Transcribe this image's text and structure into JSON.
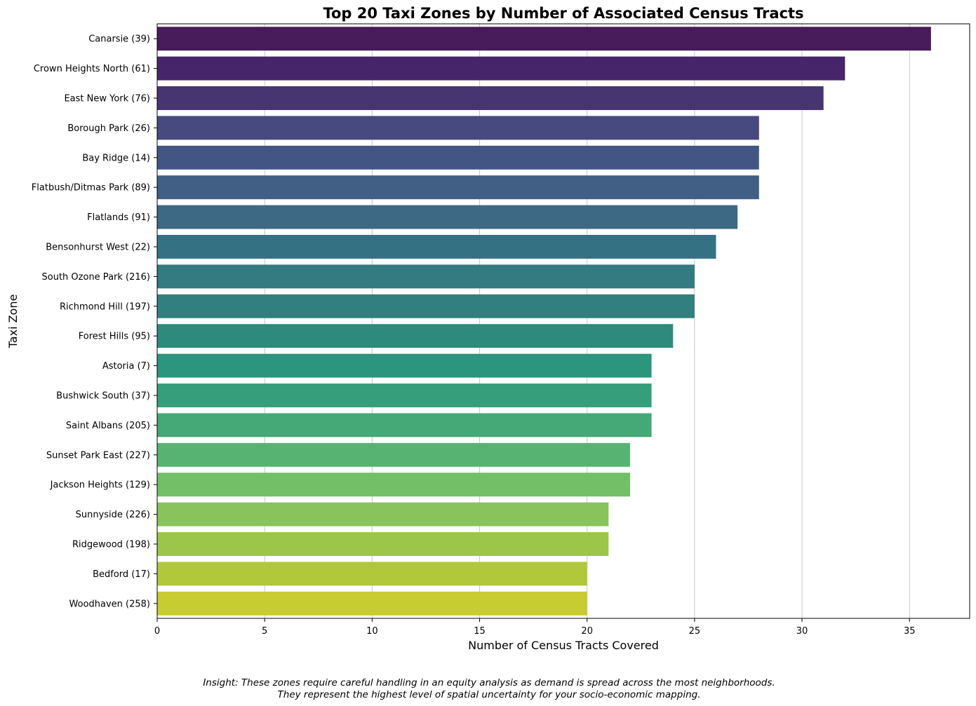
{
  "chart_data": {
    "type": "bar",
    "orientation": "horizontal",
    "title": "Top 20 Taxi Zones by Number of Associated Census Tracts",
    "xlabel": "Number of Census Tracts Covered",
    "ylabel": "Taxi Zone",
    "xlim": [
      0,
      37.8
    ],
    "xticks": [
      "0",
      "5",
      "10",
      "15",
      "20",
      "25",
      "30",
      "35"
    ],
    "grid": "vertical",
    "categories": [
      "Canarsie (39)",
      "Crown Heights North (61)",
      "East New York (76)",
      "Borough Park (26)",
      "Bay Ridge (14)",
      "Flatbush/Ditmas Park (89)",
      "Flatlands (91)",
      "Bensonhurst West (22)",
      "South Ozone Park (216)",
      "Richmond Hill (197)",
      "Forest Hills (95)",
      "Astoria (7)",
      "Bushwick South (37)",
      "Saint Albans (205)",
      "Sunset Park East (227)",
      "Jackson Heights (129)",
      "Sunnyside (226)",
      "Ridgewood (198)",
      "Bedford (17)",
      "Woodhaven (258)"
    ],
    "values": [
      36,
      32,
      31,
      28,
      28,
      28,
      27,
      26,
      25,
      25,
      24,
      23,
      23,
      23,
      22,
      22,
      21,
      21,
      20,
      20
    ],
    "colors": [
      "#481b5a",
      "#47256a",
      "#473572",
      "#464a7e",
      "#435683",
      "#415f85",
      "#3e6984",
      "#347283",
      "#337a81",
      "#31807f",
      "#2e8a7d",
      "#2c957e",
      "#369e7b",
      "#44a877",
      "#57b372",
      "#72bf68",
      "#88c35c",
      "#9bc64a",
      "#b1c83a",
      "#c7cc30"
    ]
  },
  "insight": {
    "line1": "Insight: These zones require careful handling in an equity analysis as demand is spread across the most neighborhoods.",
    "line2": "They represent the highest level of spatial uncertainty for your socio-economic mapping."
  }
}
